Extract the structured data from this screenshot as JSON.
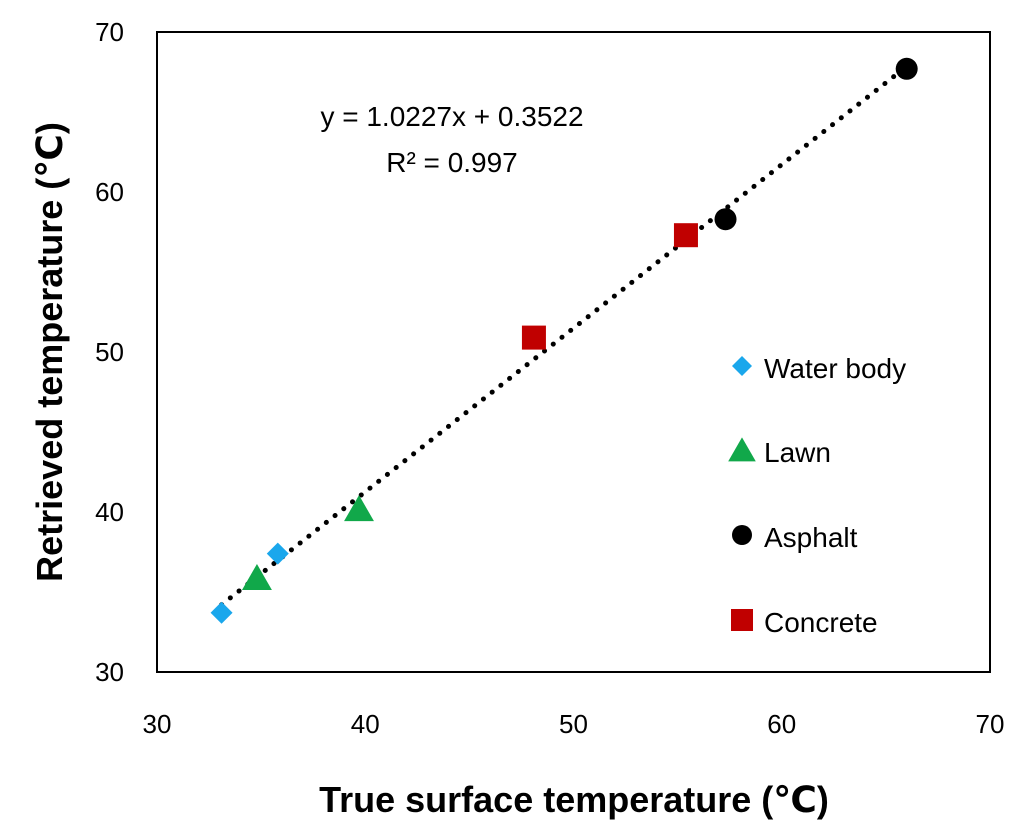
{
  "chart_data": {
    "type": "scatter",
    "title": "",
    "xlabel": "True surface temperature (℃)",
    "ylabel": "Retrieved temperature (℃)",
    "xlim": [
      30,
      70
    ],
    "ylim": [
      30,
      70
    ],
    "xticks": [
      30,
      40,
      50,
      60,
      70
    ],
    "yticks": [
      30,
      40,
      50,
      60,
      70
    ],
    "grid": false,
    "legend_position": "right",
    "series": [
      {
        "name": "Water body",
        "marker": "diamond",
        "color": "#1aa7ec",
        "points": [
          {
            "x": 33.1,
            "y": 33.7
          },
          {
            "x": 35.8,
            "y": 37.4
          }
        ]
      },
      {
        "name": "Lawn",
        "marker": "triangle",
        "color": "#11a84a",
        "points": [
          {
            "x": 34.8,
            "y": 35.9
          },
          {
            "x": 39.7,
            "y": 40.2
          }
        ]
      },
      {
        "name": "Asphalt",
        "marker": "circle",
        "color": "#000000",
        "points": [
          {
            "x": 57.3,
            "y": 58.3
          },
          {
            "x": 66.0,
            "y": 67.7
          }
        ]
      },
      {
        "name": "Concrete",
        "marker": "square",
        "color": "#c00000",
        "points": [
          {
            "x": 48.1,
            "y": 50.9
          },
          {
            "x": 55.4,
            "y": 57.3
          }
        ]
      }
    ],
    "trendline": {
      "type": "linear",
      "slope": 1.0227,
      "intercept": 0.3522,
      "x_range": [
        33.1,
        66.0
      ],
      "style": "dotted",
      "color": "#000000",
      "equation_label": "y = 1.0227x + 0.3522",
      "r2_label": "R² = 0.997"
    }
  }
}
